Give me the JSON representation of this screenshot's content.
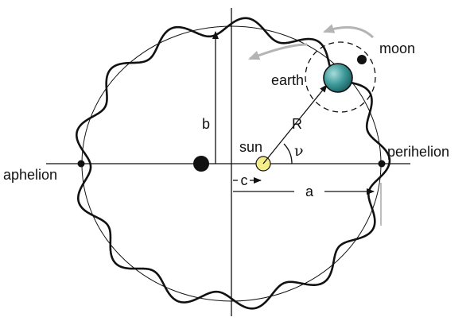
{
  "labels": {
    "aphelion": "aphelion",
    "perihelion": "perihelion",
    "sun": "sun",
    "earth": "earth",
    "moon": "moon",
    "radius": "R",
    "angle": "ν",
    "semi_major": "a",
    "semi_minor": "b",
    "focal_offset": "c"
  },
  "colors": {
    "line": "#111111",
    "sun_fill": "#f4ee8a",
    "earth_light": "#a8dcda",
    "earth_dark": "#1f6f73",
    "motion_arrow": "#b4b4b4"
  },
  "icons": {
    "earth": "earth-sphere",
    "sun": "sun-disc",
    "moon": "moon-dot",
    "focus": "empty-focus-dot",
    "motion": "curved-arrow"
  }
}
